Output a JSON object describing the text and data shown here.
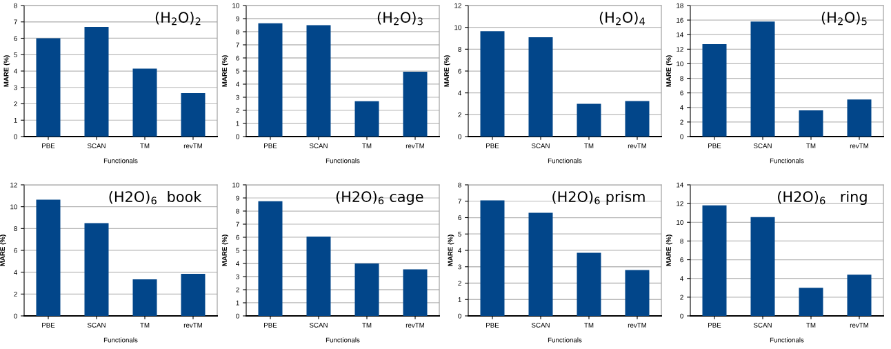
{
  "chart_data": [
    {
      "type": "bar",
      "title": "(H$_{2}$O)$_{2}$",
      "xlabel": "Functionals",
      "ylabel": "MARE (%)",
      "categories": [
        "PBE",
        "SCAN",
        "TM",
        "revTM"
      ],
      "values": [
        6.0,
        6.7,
        4.15,
        2.65
      ],
      "color": "#02468a",
      "ylim": [
        0,
        8
      ],
      "yticks": [
        0,
        1,
        2,
        3,
        4,
        5,
        6,
        7,
        8
      ],
      "grid": "y"
    },
    {
      "type": "bar",
      "title": "(H$_{2}$O)$_{3}$",
      "xlabel": "Functionals",
      "ylabel": "MARE (%)",
      "categories": [
        "PBE",
        "SCAN",
        "TM",
        "revTM"
      ],
      "values": [
        8.65,
        8.5,
        2.7,
        4.95
      ],
      "color": "#02468a",
      "ylim": [
        0,
        10
      ],
      "yticks": [
        0,
        1,
        2,
        3,
        4,
        5,
        6,
        7,
        8,
        9,
        10
      ],
      "grid": "y"
    },
    {
      "type": "bar",
      "title": "(H$_{2}$O)$_{4}$",
      "xlabel": "Functionals",
      "ylabel": "MARE (%)",
      "categories": [
        "PBE",
        "SCAN",
        "TM",
        "revTM"
      ],
      "values": [
        9.65,
        9.1,
        3.0,
        3.25
      ],
      "color": "#02468a",
      "ylim": [
        0,
        12
      ],
      "yticks": [
        0,
        2,
        4,
        6,
        8,
        10,
        12
      ],
      "grid": "y"
    },
    {
      "type": "bar",
      "title": "(H$_{2}$O)$_{5}$",
      "xlabel": "Functionals",
      "ylabel": "MARE (%)",
      "categories": [
        "PBE",
        "SCAN",
        "TM",
        "revTM"
      ],
      "values": [
        12.7,
        15.8,
        3.6,
        5.1
      ],
      "color": "#02468a",
      "ylim": [
        0,
        18
      ],
      "yticks": [
        0,
        2,
        4,
        6,
        8,
        10,
        12,
        14,
        16,
        18
      ],
      "grid": "y"
    },
    {
      "type": "bar",
      "title": "(H2O)$_{6}$  book",
      "xlabel": "Functionals",
      "ylabel": "MARE (%)",
      "categories": [
        "PBE",
        "SCAN",
        "TM",
        "revTM"
      ],
      "values": [
        10.65,
        8.5,
        3.35,
        3.85
      ],
      "color": "#02468a",
      "ylim": [
        0,
        12
      ],
      "yticks": [
        0,
        2,
        4,
        6,
        8,
        10,
        12
      ],
      "grid": "y"
    },
    {
      "type": "bar",
      "title": "(H2O)$_{6}$ cage",
      "xlabel": "Functionals",
      "ylabel": "MARE (%)",
      "categories": [
        "PBE",
        "SCAN",
        "TM",
        "revTM"
      ],
      "values": [
        8.75,
        6.05,
        4.0,
        3.55
      ],
      "color": "#02468a",
      "ylim": [
        0,
        10
      ],
      "yticks": [
        0,
        1,
        2,
        3,
        4,
        5,
        6,
        7,
        8,
        9,
        10
      ],
      "grid": "y"
    },
    {
      "type": "bar",
      "title": "(H2O)$_{6}$ prism",
      "xlabel": "Functionals",
      "ylabel": "MARE (%)",
      "categories": [
        "PBE",
        "SCAN",
        "TM",
        "revTM"
      ],
      "values": [
        7.05,
        6.3,
        3.85,
        2.8
      ],
      "color": "#02468a",
      "ylim": [
        0,
        8
      ],
      "yticks": [
        0,
        1,
        2,
        3,
        4,
        5,
        6,
        7,
        8
      ],
      "grid": "y"
    },
    {
      "type": "bar",
      "title": "(H2O)$_{6}$   ring",
      "xlabel": "Functionals",
      "ylabel": "MARE (%)",
      "categories": [
        "PBE",
        "SCAN",
        "TM",
        "revTM"
      ],
      "values": [
        11.8,
        10.55,
        3.0,
        4.4
      ],
      "color": "#02468a",
      "ylim": [
        0,
        14
      ],
      "yticks": [
        0,
        2,
        4,
        6,
        8,
        10,
        12,
        14
      ],
      "grid": "y"
    }
  ]
}
